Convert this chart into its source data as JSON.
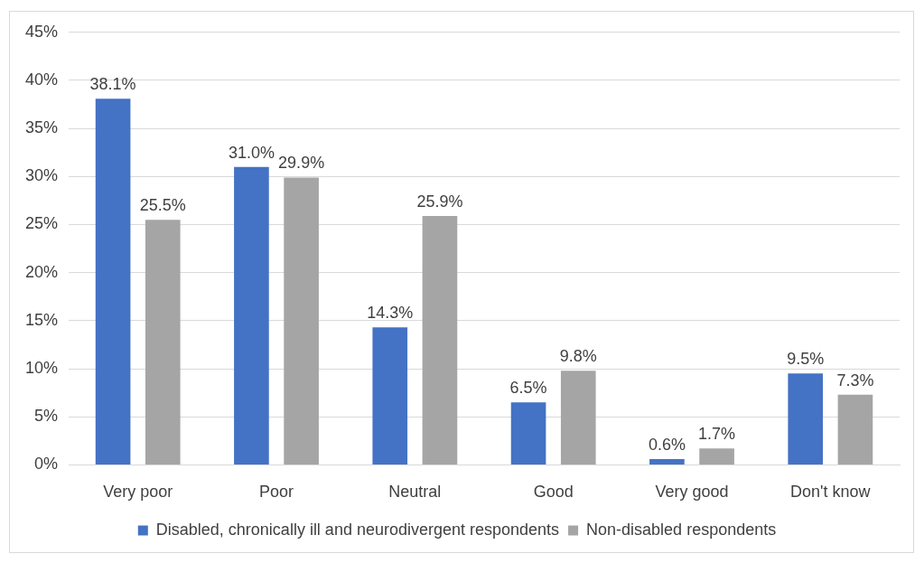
{
  "chart_data": {
    "type": "bar",
    "categories": [
      "Very poor",
      "Poor",
      "Neutral",
      "Good",
      "Very good",
      "Don't know"
    ],
    "series": [
      {
        "name": "Disabled, chronically ill and neurodivergent respondents",
        "color": "#4472c4",
        "values": [
          38.1,
          31.0,
          14.3,
          6.5,
          0.6,
          9.5
        ],
        "value_labels": [
          "38.1%",
          "31.0%",
          "14.3%",
          "6.5%",
          "0.6%",
          "9.5%"
        ]
      },
      {
        "name": "Non-disabled respondents",
        "color": "#a5a5a5",
        "values": [
          25.5,
          29.9,
          25.9,
          9.8,
          1.7,
          7.3
        ],
        "value_labels": [
          "25.5%",
          "29.9%",
          "25.9%",
          "9.8%",
          "1.7%",
          "7.3%"
        ]
      }
    ],
    "ylim": [
      0,
      45
    ],
    "yticks": [
      {
        "value": 0,
        "label": "0%"
      },
      {
        "value": 5,
        "label": "5%"
      },
      {
        "value": 10,
        "label": "10%"
      },
      {
        "value": 15,
        "label": "15%"
      },
      {
        "value": 20,
        "label": "20%"
      },
      {
        "value": 25,
        "label": "25%"
      },
      {
        "value": 30,
        "label": "30%"
      },
      {
        "value": 35,
        "label": "35%"
      },
      {
        "value": 40,
        "label": "40%"
      },
      {
        "value": 45,
        "label": "45%"
      }
    ],
    "grid": "y",
    "legend": "bottom"
  }
}
